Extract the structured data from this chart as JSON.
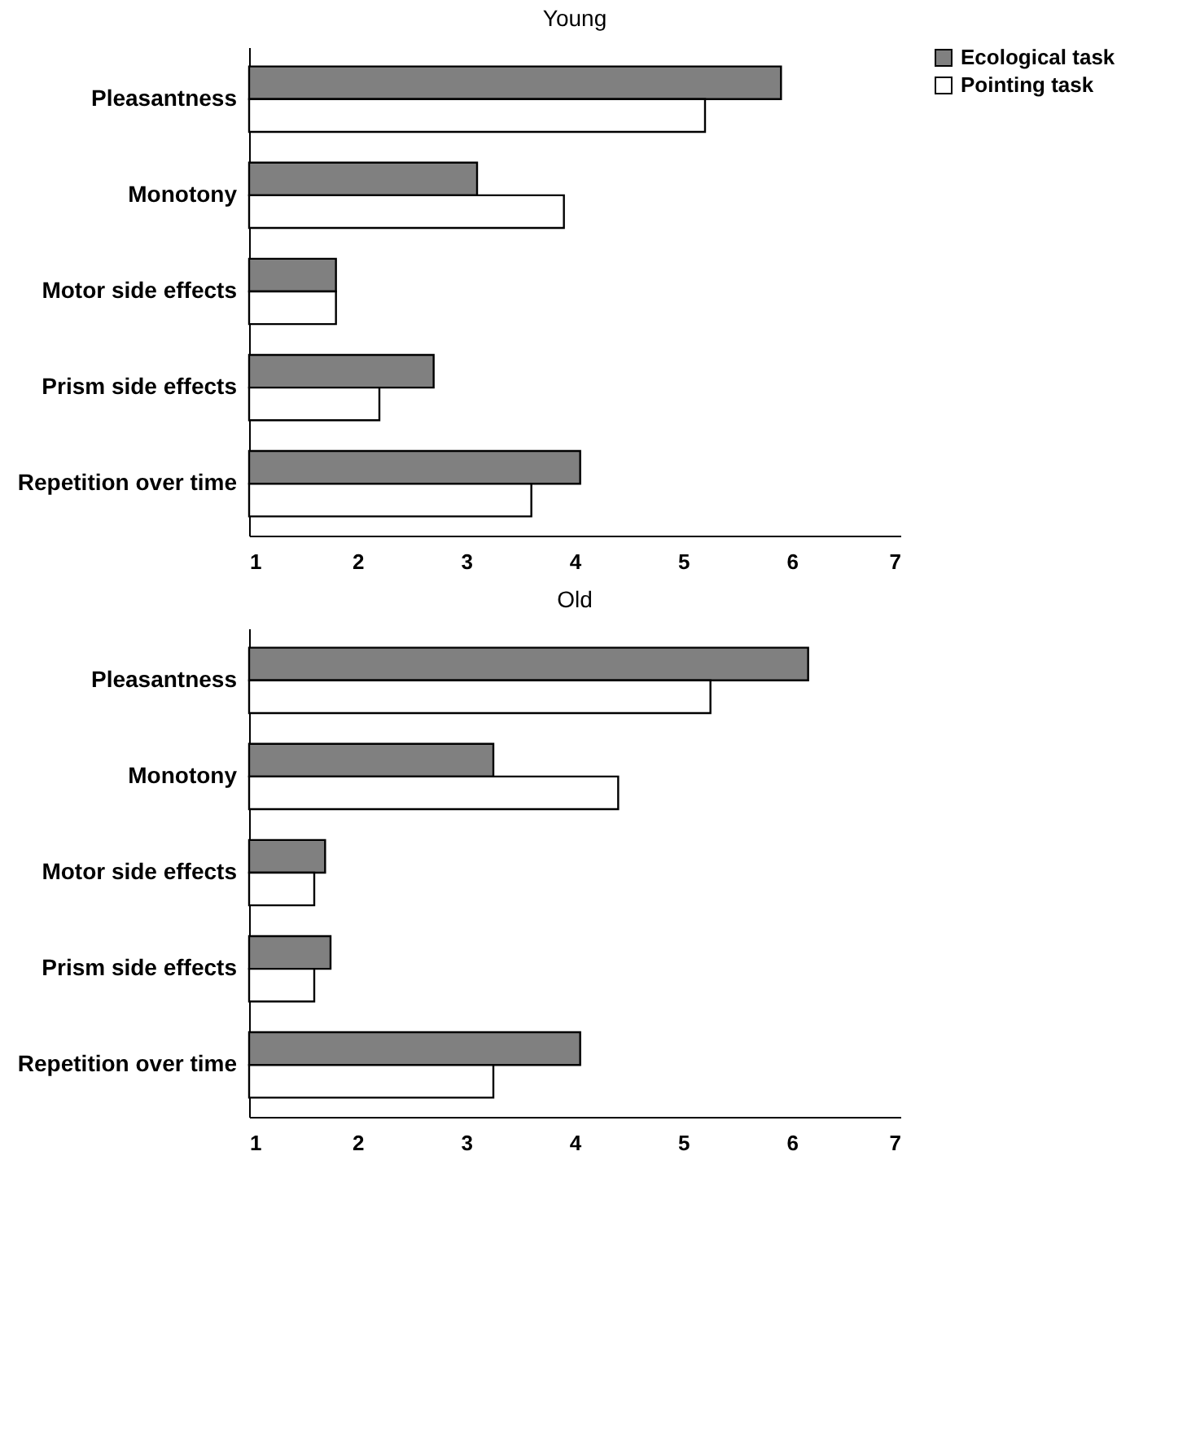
{
  "chart_data": [
    {
      "type": "bar",
      "orientation": "horizontal",
      "title": "Young",
      "categories": [
        "Pleasantness",
        "Monotony",
        "Motor side effects",
        "Prism side effects",
        "Repetition over time"
      ],
      "series": [
        {
          "name": "Ecological task",
          "color": "#808080",
          "values": [
            5.9,
            3.1,
            1.8,
            2.7,
            4.05
          ]
        },
        {
          "name": "Pointing task",
          "color": "#ffffff",
          "values": [
            5.2,
            3.9,
            1.8,
            2.2,
            3.6
          ]
        }
      ],
      "xlim": [
        1,
        7
      ],
      "xticks": [
        1,
        2,
        3,
        4,
        5,
        6,
        7
      ],
      "grid": false,
      "legend": "top right"
    },
    {
      "type": "bar",
      "orientation": "horizontal",
      "title": "Old",
      "categories": [
        "Pleasantness",
        "Monotony",
        "Motor side effects",
        "Prism side effects",
        "Repetition over time"
      ],
      "series": [
        {
          "color": "#808080",
          "values": [
            6.15,
            3.25,
            1.7,
            1.75,
            4.05
          ]
        },
        {
          "color": "#ffffff",
          "values": [
            5.25,
            4.4,
            1.6,
            1.6,
            3.25
          ]
        }
      ],
      "xlim": [
        1,
        7
      ],
      "xticks": [
        1,
        2,
        3,
        4,
        5,
        6,
        7
      ],
      "grid": false,
      "legend": false
    }
  ]
}
